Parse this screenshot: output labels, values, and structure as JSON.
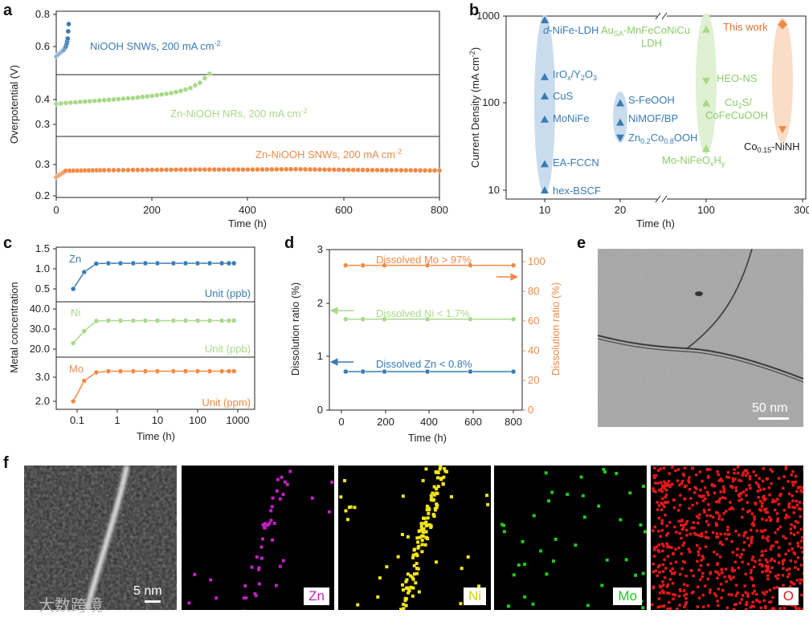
{
  "panel_labels": {
    "a": "a",
    "b": "b",
    "c": "c",
    "d": "d",
    "e": "e",
    "f": "f"
  },
  "panel_a": {
    "ylabel": "Overpotential (V)",
    "xlabel": "Time (h)",
    "xticks": [
      "0",
      "200",
      "400",
      "600",
      "800"
    ],
    "sub1_yticks": [
      "0.8",
      "0.6"
    ],
    "sub2_yticks": [
      "0.4",
      "0.3"
    ],
    "sub3_yticks": [
      "0.3",
      "0.2"
    ],
    "label1": "NiOOH SNWs, 200 mA cm",
    "label2": "Zn-NiOOH NRs, 200 mA cm",
    "label3": "Zn-NiOOH SNWs, 200 mA cm",
    "sup": "-2",
    "colors": {
      "blue": "#3a7bb2",
      "green": "#a8d98a",
      "orange": "#f08a45"
    }
  },
  "chart_data": [
    {
      "type": "scatter",
      "panel": "a",
      "xlabel": "Time (h)",
      "ylabel": "Overpotential (V)",
      "xlim": [
        0,
        800
      ],
      "series": [
        {
          "name": "NiOOH SNWs, 200 mA cm-2",
          "x": [
            0,
            2,
            4,
            6,
            8,
            10,
            12,
            14,
            16,
            18,
            20,
            22,
            24,
            26
          ],
          "y": [
            0.55,
            0.555,
            0.56,
            0.565,
            0.57,
            0.575,
            0.58,
            0.585,
            0.59,
            0.6,
            0.61,
            0.63,
            0.66,
            0.75
          ]
        },
        {
          "name": "Zn-NiOOH NRs, 200 mA cm-2",
          "x": [
            0,
            20,
            40,
            60,
            80,
            100,
            120,
            140,
            160,
            180,
            200,
            220,
            240,
            260,
            280,
            300,
            320
          ],
          "y": [
            0.355,
            0.358,
            0.36,
            0.362,
            0.364,
            0.366,
            0.368,
            0.37,
            0.372,
            0.375,
            0.378,
            0.382,
            0.386,
            0.392,
            0.4,
            0.415,
            0.44
          ]
        },
        {
          "name": "Zn-NiOOH SNWs, 200 mA cm-2",
          "x": [
            0,
            20,
            100,
            200,
            300,
            400,
            500,
            600,
            700,
            800
          ],
          "y": [
            0.26,
            0.28,
            0.282,
            0.283,
            0.284,
            0.284,
            0.285,
            0.283,
            0.282,
            0.281
          ]
        }
      ]
    },
    {
      "type": "scatter",
      "panel": "b",
      "xlabel": "Time (h)",
      "ylabel": "Current Density (mA cm-2)",
      "yscale": "log",
      "ylim": [
        10,
        1000
      ],
      "xticks": [
        "10",
        "20",
        "100",
        "300"
      ],
      "yticks": [
        "10",
        "100",
        "1000"
      ],
      "points": [
        {
          "label": "d-NiFe-LDH",
          "x": 10,
          "y": 900,
          "color": "#3a7bb2"
        },
        {
          "label": "IrOx/Y2O3",
          "x": 10,
          "y": 200,
          "color": "#3a7bb2"
        },
        {
          "label": "CuS",
          "x": 10,
          "y": 120,
          "color": "#3a7bb2"
        },
        {
          "label": "MoNiFe",
          "x": 10,
          "y": 65,
          "color": "#3a7bb2"
        },
        {
          "label": "EA-FCCN",
          "x": 10,
          "y": 20,
          "color": "#3a7bb2"
        },
        {
          "label": "hex-BSCF",
          "x": 10,
          "y": 10,
          "color": "#3a7bb2"
        },
        {
          "label": "S-FeOOH",
          "x": 20,
          "y": 100,
          "color": "#3a7bb2"
        },
        {
          "label": "NiMOF/BP",
          "x": 20,
          "y": 60,
          "color": "#3a7bb2"
        },
        {
          "label": "Zn0.2Co0.8OOH",
          "x": 20,
          "y": 40,
          "color": "#3a7bb2"
        },
        {
          "label": "AuSA-MnFeCoNiCu LDH",
          "x": 100,
          "y": 700,
          "color": "#a8d98a"
        },
        {
          "label": "HEO-NS",
          "x": 100,
          "y": 180,
          "color": "#a8d98a"
        },
        {
          "label": "Cu2S/CoFeCuOOH",
          "x": 100,
          "y": 100,
          "color": "#a8d98a"
        },
        {
          "label": "Mo-NiFeOxHy",
          "x": 100,
          "y": 30,
          "color": "#a8d98a"
        },
        {
          "label": "This work",
          "x": 280,
          "y": 800,
          "color": "#f08a45"
        },
        {
          "label": "Co0.15-NiNH",
          "x": 280,
          "y": 50,
          "color": "#f08a45"
        }
      ]
    },
    {
      "type": "line",
      "panel": "c",
      "xlabel": "Time (h)",
      "ylabel": "Metal concentration",
      "xscale": "log",
      "x": [
        0.08,
        0.15,
        0.3,
        0.6,
        1.2,
        2.5,
        5,
        10,
        25,
        50,
        100,
        200,
        400,
        600,
        800
      ],
      "series": [
        {
          "name": "Zn",
          "unit": "Unit (ppb)",
          "y": [
            0.5,
            0.92,
            1.13,
            1.14,
            1.14,
            1.14,
            1.14,
            1.14,
            1.14,
            1.14,
            1.14,
            1.14,
            1.14,
            1.14,
            1.14
          ]
        },
        {
          "name": "Ni",
          "unit": "Unit (ppb)",
          "y": [
            23,
            29,
            34,
            34.2,
            34.2,
            34.2,
            34.2,
            34.2,
            34.2,
            34.2,
            34.2,
            34.2,
            34.2,
            34.2,
            34.2
          ]
        },
        {
          "name": "Mo",
          "unit": "Unit (ppm)",
          "y": [
            2.0,
            2.85,
            3.2,
            3.25,
            3.25,
            3.25,
            3.25,
            3.25,
            3.25,
            3.25,
            3.25,
            3.25,
            3.25,
            3.25,
            3.25
          ]
        }
      ]
    },
    {
      "type": "line",
      "panel": "d",
      "xlabel": "Time (h)",
      "ylabel": "Dissolution ratio (%)",
      "ylabel_right": "Dissolution ratio (%)",
      "ylim": [
        0,
        3
      ],
      "ylim_right": [
        0,
        100
      ],
      "x": [
        20,
        100,
        200,
        400,
        600,
        800
      ],
      "series": [
        {
          "name": "Dissolved Mo > 97%",
          "axis": "right",
          "y": [
            97.5,
            97.5,
            97.5,
            97.5,
            97.5,
            97.5
          ]
        },
        {
          "name": "Dissolved Ni < 1.7%",
          "axis": "left",
          "y": [
            1.7,
            1.7,
            1.7,
            1.7,
            1.7,
            1.7
          ]
        },
        {
          "name": "Dissolved Zn < 0.8%",
          "axis": "left",
          "y": [
            0.72,
            0.72,
            0.72,
            0.72,
            0.72,
            0.72
          ]
        }
      ]
    }
  ],
  "panel_b": {
    "ylabel": "Current Density (mA cm",
    "ylabel_sup": "-2",
    "ylabel_end": ")",
    "xlabel": "Time (h)",
    "labels": {
      "dnife": "-NiFe-LDH",
      "dnife_it": "d",
      "irox": "IrO",
      "irox_x": "x",
      "irox_rest": "/Y",
      "irox_2": "2",
      "irox_o": "O",
      "irox_3": "3",
      "cus": "CuS",
      "monife": "MoNiFe",
      "eafccn": "EA-FCCN",
      "hexbscf": "hex-BSCF",
      "sfeooh": "S-FeOOH",
      "nimof": "NiMOF/BP",
      "zn": "Zn",
      "zn_a": "0.2",
      "co": "Co",
      "co_a": "0.8",
      "ooh": "OOH",
      "au": "Au",
      "au_sa": "SA",
      "au_rest": "-MnFeCoNiCu",
      "ldh": "LDH",
      "heons": "HEO-NS",
      "cu2s_a": "Cu",
      "cu2s_2": "2",
      "cu2s_b": "S/",
      "cofecu": "CoFeCuOOH",
      "mo_a": "Mo-NiFeO",
      "mo_x": "x",
      "mo_h": "H",
      "mo_y": "y",
      "thiswork": "This work",
      "coni_a": "Co",
      "coni_sub": "0.15",
      "coni_b": "-NiNH"
    }
  },
  "panel_c": {
    "ylabel": "Metal concentration",
    "xlabel": "Time (h)",
    "xticks": [
      "0.1",
      "1",
      "10",
      "100",
      "1000"
    ],
    "zn_yticks": [
      "1.5",
      "1.0",
      "0.5"
    ],
    "ni_yticks": [
      "40.0",
      "30.0",
      "20.0"
    ],
    "mo_yticks": [
      "3.0",
      "2.0"
    ],
    "zn_label": "Zn",
    "ni_label": "Ni",
    "mo_label": "Mo",
    "zn_unit": "Unit (ppb)",
    "ni_unit": "Unit (ppb)",
    "mo_unit": "Unit (ppm)"
  },
  "panel_d": {
    "ylabel": "Dissolution ratio (%)",
    "ylabel_right": "Dissolution ratio (%)",
    "xlabel": "Time (h)",
    "xticks": [
      "0",
      "200",
      "400",
      "600",
      "800"
    ],
    "yticks_left": [
      "3",
      "2",
      "1",
      "0"
    ],
    "yticks_right": [
      "100",
      "80",
      "60",
      "40",
      "20",
      "0"
    ],
    "mo_label": "Dissolved Mo > 97%",
    "ni_label": "Dissolved Ni < 1.7%",
    "zn_label": "Dissolved Zn < 0.8%"
  },
  "panel_e": {
    "scale": "50 nm"
  },
  "panel_f": {
    "scale": "5 nm",
    "maps": [
      "Zn",
      "Ni",
      "Mo",
      "O"
    ],
    "map_colors": [
      "#c021c0",
      "#f2e61a",
      "#1ec81e",
      "#e01818"
    ]
  },
  "watermark": "大数跨境"
}
